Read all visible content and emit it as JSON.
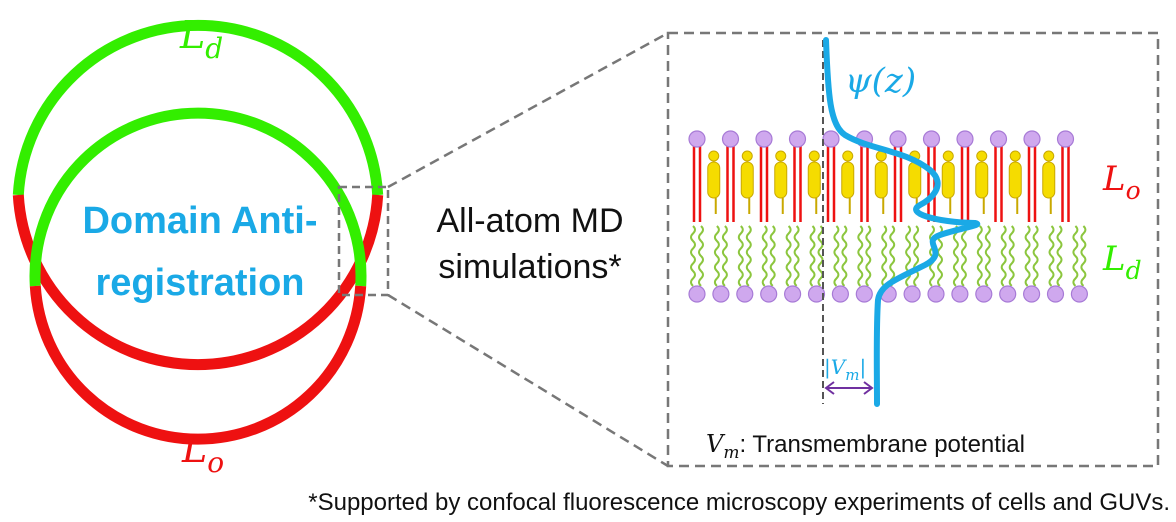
{
  "vesicle": {
    "top_label": {
      "symbol": "L",
      "sub": "d"
    },
    "bottom_label": {
      "symbol": "L",
      "sub": "o"
    },
    "center_line1": "Domain Anti-",
    "center_line2": "registration"
  },
  "method": {
    "line1": "All-atom MD",
    "line2": "simulations*"
  },
  "inset": {
    "curve_label": "ψ(z)",
    "upper_leaflet_label": {
      "symbol": "L",
      "sub": "o"
    },
    "lower_leaflet_label": {
      "symbol": "L",
      "sub": "d"
    },
    "vm_symbol": "V",
    "vm_sub": "m",
    "vm_caption_text": ": Transmembrane potential"
  },
  "footnote": "*Supported by confocal fluorescence microscopy experiments of cells and GUVs.",
  "colors": {
    "green": "#33ee00",
    "red": "#ee1111",
    "cyan": "#1aa9e6",
    "lipid_head": "#cfa8ee",
    "lipid_head_stroke": "#a77ad6",
    "cholesterol": "#f5dc00",
    "tail_green": "#8cc63e",
    "dashed": "#777777",
    "arrow": "#7030a0"
  }
}
